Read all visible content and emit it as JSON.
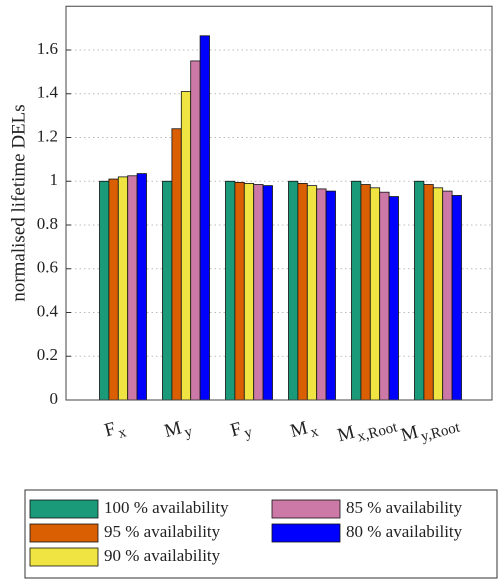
{
  "chart_data": {
    "type": "bar",
    "y_label": "normalised lifetime DELs",
    "categories": [
      {
        "main": "F",
        "sub": "x"
      },
      {
        "main": "M",
        "sub": "y"
      },
      {
        "main": "F",
        "sub": "y"
      },
      {
        "main": "M",
        "sub": "x"
      },
      {
        "main": "M",
        "sub": "x,Root"
      },
      {
        "main": "M",
        "sub": "y,Root"
      }
    ],
    "series": [
      {
        "name": "100 % availability",
        "color": "#1a9a78",
        "values": [
          1.0,
          1.0,
          1.0,
          1.0,
          1.0,
          1.0
        ]
      },
      {
        "name": "95 % availability",
        "color": "#d95f02",
        "values": [
          1.01,
          1.24,
          0.995,
          0.99,
          0.985,
          0.985
        ]
      },
      {
        "name": "90 % availability",
        "color": "#f0e442",
        "values": [
          1.02,
          1.41,
          0.99,
          0.98,
          0.97,
          0.97
        ]
      },
      {
        "name": "85 % availability",
        "color": "#cc79a7",
        "values": [
          1.025,
          1.55,
          0.985,
          0.965,
          0.95,
          0.955
        ]
      },
      {
        "name": "80 % availability",
        "color": "#0000ff",
        "values": [
          1.035,
          1.665,
          0.98,
          0.955,
          0.93,
          0.935
        ]
      }
    ],
    "ylim": [
      0,
      1.8
    ],
    "yticks": [
      0,
      0.2,
      0.4,
      0.6,
      0.8,
      1,
      1.2,
      1.4,
      1.6
    ],
    "grid": true
  }
}
